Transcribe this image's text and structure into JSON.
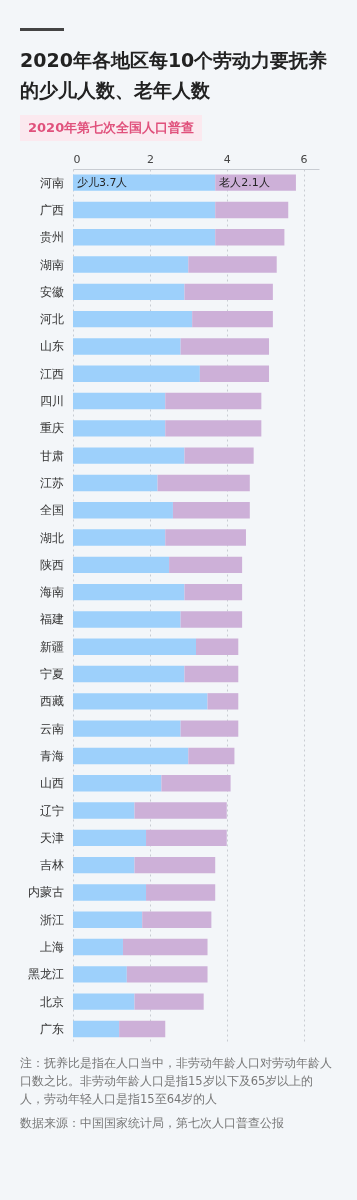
{
  "chart_data": {
    "type": "bar",
    "orientation": "horizontal",
    "stacked": true,
    "title": "2020年各地区每10个劳动力要抚养的少儿人数、老年人数",
    "subtitle": "2020年第七次全国人口普查",
    "categories": [
      "河南",
      "广西",
      "贵州",
      "湖南",
      "安徽",
      "河北",
      "山东",
      "江西",
      "四川",
      "重庆",
      "甘肃",
      "江苏",
      "全国",
      "湖北",
      "陕西",
      "海南",
      "福建",
      "新疆",
      "宁夏",
      "西藏",
      "云南",
      "青海",
      "山西",
      "辽宁",
      "天津",
      "吉林",
      "内蒙古",
      "浙江",
      "上海",
      "黑龙江",
      "北京",
      "广东"
    ],
    "series": [
      {
        "color": "#9dd0fb",
        "values": [
          3.7,
          3.7,
          3.7,
          3.0,
          2.9,
          3.1,
          2.8,
          3.3,
          2.4,
          2.4,
          2.9,
          2.2,
          2.6,
          2.4,
          2.5,
          2.9,
          2.8,
          3.2,
          2.9,
          3.5,
          2.8,
          3.0,
          2.3,
          1.6,
          1.9,
          1.6,
          1.9,
          1.8,
          1.3,
          1.4,
          1.6,
          1.2
        ],
        "value_labels": [
          "少儿3.7人",
          null,
          null,
          null,
          null,
          null,
          null,
          null,
          null,
          null,
          null,
          null,
          null,
          null,
          null,
          null,
          null,
          null,
          null,
          null,
          null,
          null,
          null,
          null,
          null,
          null,
          null,
          null,
          null,
          null,
          null,
          null
        ]
      },
      {
        "color": "#cdb0d8",
        "values": [
          2.1,
          1.9,
          1.8,
          2.3,
          2.3,
          2.1,
          2.3,
          1.8,
          2.5,
          2.5,
          1.8,
          2.4,
          2.0,
          2.1,
          1.9,
          1.5,
          1.6,
          1.1,
          1.4,
          0.8,
          1.5,
          1.2,
          1.8,
          2.4,
          2.1,
          2.1,
          1.8,
          1.8,
          2.2,
          2.1,
          1.8,
          1.2
        ],
        "value_labels": [
          "老人2.1人",
          null,
          null,
          null,
          null,
          null,
          null,
          null,
          null,
          null,
          null,
          null,
          null,
          null,
          null,
          null,
          null,
          null,
          null,
          null,
          null,
          null,
          null,
          null,
          null,
          null,
          null,
          null,
          null,
          null,
          null,
          null
        ]
      }
    ],
    "xlim": [
      0,
      6.4
    ],
    "xticks": [
      0,
      2,
      4,
      6
    ],
    "grid": "x",
    "annotations": [
      "注：抚养比是指在人口当中，非劳动年龄人口对劳动年龄人口数之比。非劳动年龄人口是指15岁以下及65岁以上的人，劳动年轻人口是指15至64岁的人",
      "数据来源：中国国家统计局，第七次人口普查公报"
    ]
  }
}
